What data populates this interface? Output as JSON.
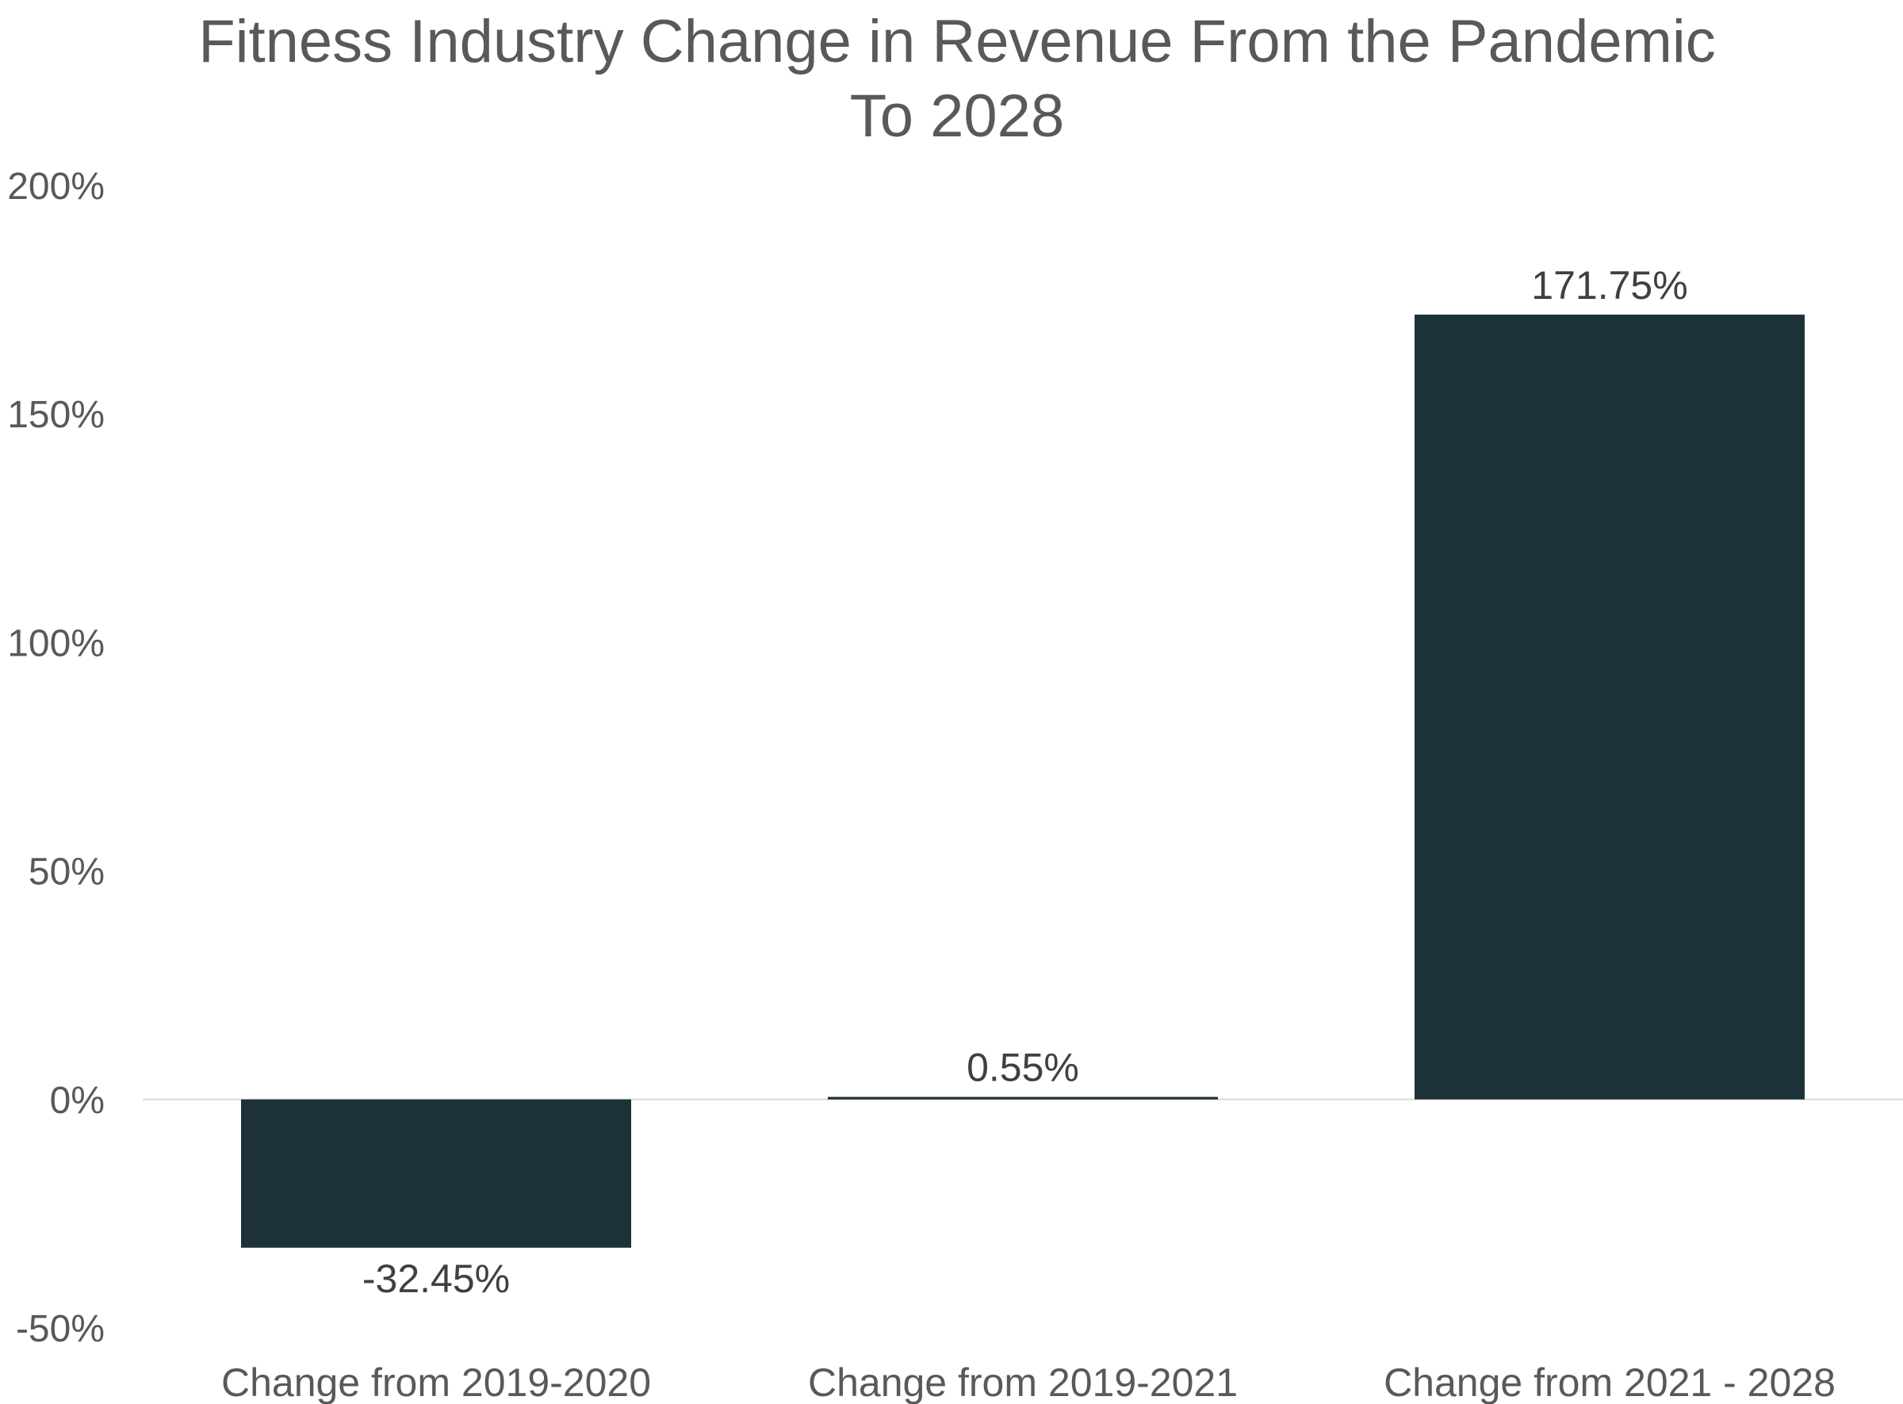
{
  "chart_data": {
    "type": "bar",
    "title": "Fitness Industry Change in Revenue From the Pandemic To 2028",
    "title_lines": [
      "Fitness Industry Change in Revenue From the Pandemic",
      "To 2028"
    ],
    "categories": [
      "Change from 2019-2020",
      "Change from 2019-2021",
      "Change from 2021 - 2028"
    ],
    "values": [
      -32.45,
      0.55,
      171.75
    ],
    "data_labels": [
      "-32.45%",
      "0.55%",
      "171.75%"
    ],
    "ylim": [
      -50,
      200
    ],
    "yticks": [
      200,
      150,
      100,
      50,
      0,
      -50
    ],
    "ytick_labels": [
      "200%",
      "150%",
      "100%",
      "50%",
      "0%",
      "-50%"
    ],
    "xlabel": "",
    "ylabel": "",
    "grid": false,
    "legend": "none",
    "bar_color": "#1c3238",
    "zero_line_color": "#d9d9d9",
    "text_color": "#595959"
  }
}
